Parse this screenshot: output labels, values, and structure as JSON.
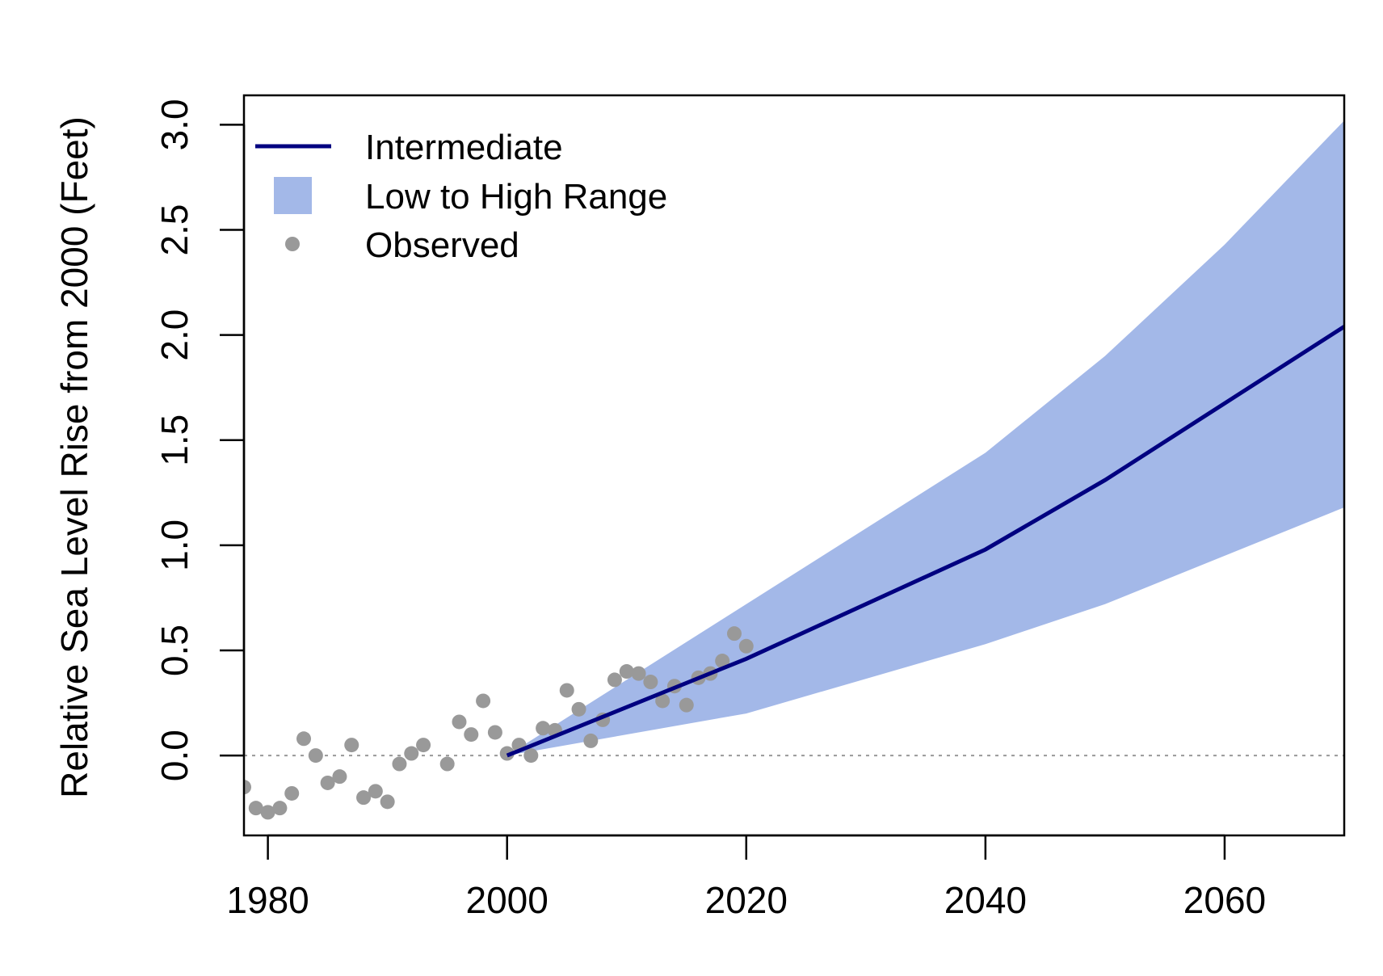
{
  "chart_data": {
    "type": "line",
    "title": "",
    "xlabel": "",
    "ylabel": "Relative Sea Level Rise from 2000 (Feet)",
    "xlim": [
      1978,
      2070
    ],
    "ylim": [
      -0.38,
      3.14
    ],
    "x_ticks": [
      1980,
      2000,
      2020,
      2040,
      2060
    ],
    "y_ticks": [
      0.0,
      0.5,
      1.0,
      1.5,
      2.0,
      2.5,
      3.0
    ],
    "x_tick_labels": [
      "1980",
      "2000",
      "2020",
      "2040",
      "2060"
    ],
    "y_tick_labels": [
      "0.0",
      "0.5",
      "1.0",
      "1.5",
      "2.0",
      "2.5",
      "3.0"
    ],
    "grid": false,
    "legend_position": "top-left",
    "reference_line": {
      "y": 0,
      "style": "dotted",
      "color": "#999999"
    },
    "series": [
      {
        "name": "Intermediate",
        "kind": "line",
        "color": "#000080",
        "x": [
          2000,
          2020,
          2040,
          2050,
          2070
        ],
        "y": [
          0.0,
          0.46,
          0.98,
          1.31,
          2.04
        ]
      },
      {
        "name": "Low to High Range",
        "kind": "band",
        "color": "#A3B8E8",
        "x": [
          2000,
          2020,
          2040,
          2050,
          2060,
          2070
        ],
        "low": [
          0.0,
          0.2,
          0.53,
          0.72,
          0.95,
          1.18
        ],
        "high": [
          0.0,
          0.72,
          1.44,
          1.9,
          2.43,
          3.02
        ]
      },
      {
        "name": "Observed",
        "kind": "scatter",
        "color": "#999999",
        "x": [
          1978,
          1979,
          1980,
          1981,
          1982,
          1983,
          1984,
          1985,
          1986,
          1987,
          1988,
          1989,
          1990,
          1991,
          1992,
          1993,
          1995,
          1996,
          1997,
          1998,
          1999,
          2000,
          2001,
          2002,
          2003,
          2004,
          2005,
          2006,
          2007,
          2008,
          2009,
          2010,
          2011,
          2012,
          2013,
          2014,
          2015,
          2016,
          2017,
          2018,
          2019,
          2020
        ],
        "y": [
          -0.15,
          -0.25,
          -0.27,
          -0.25,
          -0.18,
          0.08,
          0.0,
          -0.13,
          -0.1,
          0.05,
          -0.2,
          -0.17,
          -0.22,
          -0.04,
          0.01,
          0.05,
          -0.04,
          0.16,
          0.1,
          0.26,
          0.11,
          0.01,
          0.05,
          0.0,
          0.13,
          0.12,
          0.31,
          0.22,
          0.07,
          0.17,
          0.36,
          0.4,
          0.39,
          0.35,
          0.26,
          0.33,
          0.24,
          0.37,
          0.39,
          0.45,
          0.58,
          0.52
        ]
      }
    ]
  }
}
